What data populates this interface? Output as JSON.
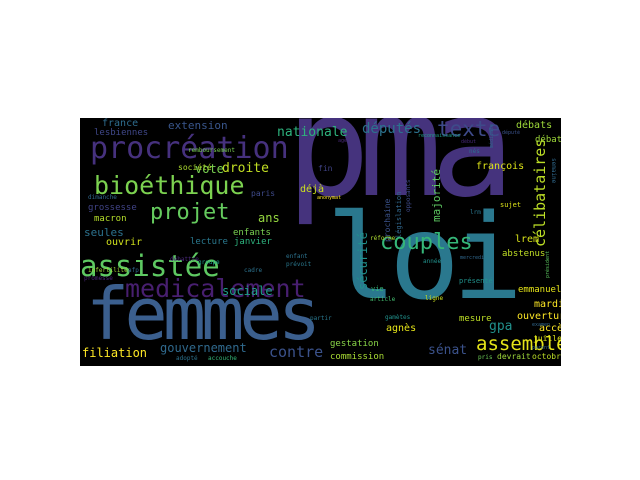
{
  "cloud": {
    "background": "#000000",
    "words": {
      "pma": "pma",
      "loi": "loi",
      "femmes": "femmes",
      "procreation": "procréation",
      "bioethique": "bioéthique",
      "assistee": "assistée",
      "medicalement": "medicalement",
      "projet": "projet",
      "couples": "couples",
      "assemblee": "assemblée",
      "texte": "texte",
      "celibataires": "célibataires",
      "securite": "sécurité",
      "deputes": "députés",
      "nationale": "nationale",
      "sociale": "sociale",
      "gouvernement": "gouvernement",
      "contre": "contre",
      "senat": "sénat",
      "filiation": "filiation",
      "droite": "droite",
      "vote": "vote",
      "ans": "ans",
      "extension": "extension",
      "france": "france",
      "lesbiennes": "lesbiennes",
      "seules": "seules",
      "enfants": "enfants",
      "lecture": "lecture",
      "janvier": "janvier",
      "ouvrir": "ouvrir",
      "macron": "macron",
      "grossesse": "grossesse",
      "gpa": "gpa",
      "mardi": "mardi",
      "ouverture": "ouverture",
      "acces": "accès",
      "agnes": "agnès",
      "lrem": "lrem",
      "francois": "françois",
      "debats": "débats",
      "debat": "débat",
      "majorite": "majorité",
      "abstenus": "abstenus",
      "societe": "société",
      "deja": "déjà",
      "paris": "paris",
      "gestation": "gestation",
      "commission": "commission",
      "mesure": "mesure",
      "emmanuel": "emmanuel",
      "juillet": "juillet",
      "octobre": "octobre",
      "devrait": "devrait",
      "vie": "vie",
      "sujet": "sujet",
      "fin": "fin",
      "remboursement": "remboursement",
      "dimanche": "dimanche",
      "debattre": "débattre",
      "afp": "afp",
      "infertilite": "infertilité",
      "groupe": "groupe",
      "adopte": "adopté",
      "accouche": "accouche",
      "cadre": "cadre",
      "enfant": "enfant",
      "prevoit": "prévoit",
      "partir": "partir",
      "article": "article",
      "reforme": "réforme",
      "legislation": "législation",
      "prochaine": "prochaine",
      "gametes": "gamètes",
      "ligne": "ligne",
      "annee": "année",
      "present": "présenté",
      "examen": "examen",
      "parent": "parent",
      "pris": "pris",
      "promesse": "promesse",
      "nes": "nés",
      "debut": "début",
      "reconnaissance": "reconnaissance",
      "depute": "député",
      "age": "age",
      "semaine": "semaine",
      "lrm": "lrm",
      "opposants": "opposants",
      "mercredi": "mercredi",
      "president": "président",
      "medicale": "médicale",
      "anonymat": "anonymat"
    }
  }
}
